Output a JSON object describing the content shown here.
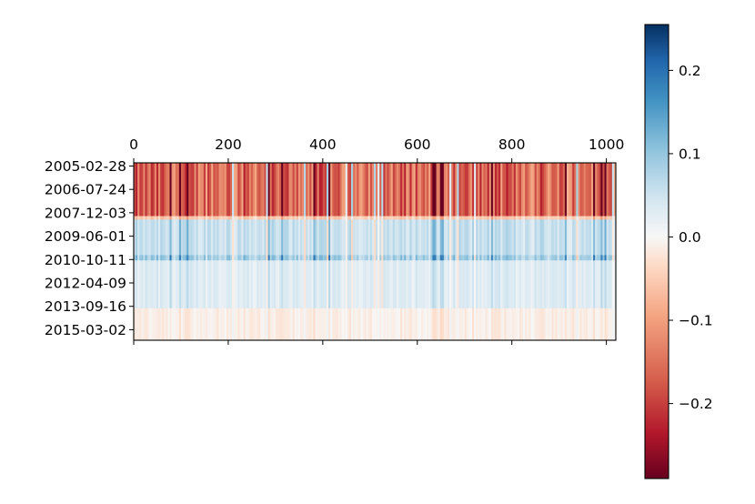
{
  "chart_data": {
    "type": "heatmap",
    "title": "",
    "xlabel": "",
    "ylabel": "",
    "x_range": [
      0,
      1020
    ],
    "x_ticks": [
      0,
      200,
      400,
      600,
      800,
      1000
    ],
    "x_tick_labels": [
      "0",
      "200",
      "400",
      "600",
      "800",
      "1000"
    ],
    "x_axis_position": "top and bottom ticks, labels on top",
    "y_tick_labels": [
      "2005-02-28",
      "2006-07-24",
      "2007-12-03",
      "2009-06-01",
      "2010-10-11",
      "2012-04-09",
      "2013-09-16",
      "2015-03-02"
    ],
    "colormap": "RdBu",
    "colorbar": {
      "min": -0.29,
      "max": 0.255,
      "ticks": [
        0.2,
        0.1,
        0.0,
        -0.1,
        -0.2
      ],
      "tick_labels": [
        "0.2",
        "0.1",
        "0.0",
        "−0.1",
        "−0.2"
      ],
      "placement": "right"
    },
    "row_bands": [
      {
        "period": "2005-02-28 to 2007-12-03",
        "typical_value": -0.15,
        "description": "strongly negative with strong column variation"
      },
      {
        "period": "2007-12-03 to 2008-06",
        "typical_value": -0.05
      },
      {
        "period": "2008-06 to 2010-10-11",
        "typical_value": 0.06,
        "description": "positive"
      },
      {
        "period": "2010-10-11 to 2013-09-16",
        "typical_value": 0.03
      },
      {
        "period": "2013-09-16 to 2016",
        "typical_value": -0.01
      }
    ],
    "grid": false
  },
  "colors": {
    "strong_red": "#67001f",
    "red": "#b2182b",
    "light_red": "#f4a582",
    "neutral": "#f7f7f7",
    "light_blue": "#92c5de",
    "blue": "#2166ac",
    "strong_blue": "#053061"
  }
}
